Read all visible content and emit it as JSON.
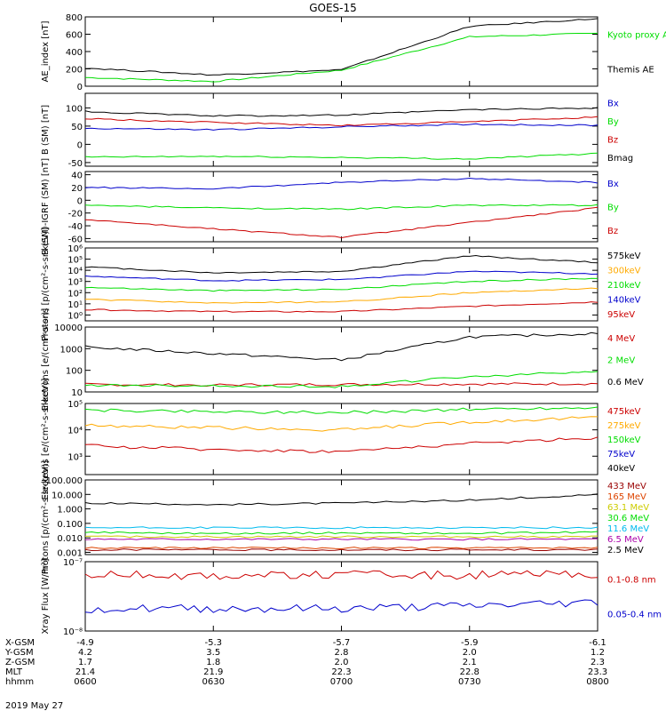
{
  "title": "GOES-15",
  "date_label": "2019 May 27",
  "x_axis": {
    "time_ticks": [
      "0600",
      "0630",
      "0700",
      "0730",
      "0800"
    ],
    "footer_rows": [
      {
        "label": "X-GSM",
        "values": [
          "-4.9",
          "-5.3",
          "-5.7",
          "-5.9",
          "-6.1"
        ]
      },
      {
        "label": "Y-GSM",
        "values": [
          "4.2",
          "3.5",
          "2.8",
          "2.0",
          "1.2"
        ]
      },
      {
        "label": "Z-GSM",
        "values": [
          "1.7",
          "1.8",
          "2.0",
          "2.1",
          "2.3"
        ]
      },
      {
        "label": "MLT",
        "values": [
          "21.4",
          "21.9",
          "22.3",
          "22.8",
          "23.3"
        ]
      },
      {
        "label": "hhmm",
        "values": [
          "0600",
          "0630",
          "0700",
          "0730",
          "0800"
        ]
      }
    ]
  },
  "colors": {
    "black": "#000000",
    "green": "#00dd00",
    "blue": "#0000cc",
    "red": "#cc0000",
    "orange": "#ffaa00",
    "cyan": "#00bbee",
    "darkred": "#990000",
    "redorange": "#dd4400",
    "yellow": "#cccc00",
    "purple": "#aa00aa"
  },
  "chart_data": [
    {
      "type": "line",
      "ylabel": "AE_index [nT]",
      "yscale": "linear",
      "ylim": [
        0,
        800
      ],
      "yticks": [
        "0",
        "200",
        "400",
        "600",
        "800"
      ],
      "x": [
        "0600",
        "0630",
        "0700",
        "0730",
        "0800"
      ],
      "series": [
        {
          "name": "Kyoto proxy AE",
          "color": "#00dd00",
          "values": [
            100,
            55,
            185,
            570,
            610
          ]
        },
        {
          "name": "Themis AE",
          "color": "#000000",
          "values": [
            210,
            130,
            190,
            690,
            780
          ]
        }
      ]
    },
    {
      "type": "line",
      "ylabel": "B (SM) [nT]",
      "yscale": "linear",
      "ylim": [
        -60,
        140
      ],
      "yticks": [
        "-50",
        "0",
        "50",
        "100"
      ],
      "x": [
        "0600",
        "0630",
        "0700",
        "0730",
        "0800"
      ],
      "series": [
        {
          "name": "Bx",
          "color": "#0000cc",
          "values": [
            44,
            40,
            48,
            55,
            52
          ]
        },
        {
          "name": "By",
          "color": "#00dd00",
          "values": [
            -35,
            -33,
            -36,
            -40,
            -25
          ]
        },
        {
          "name": "Bz",
          "color": "#cc0000",
          "values": [
            70,
            60,
            52,
            62,
            75
          ]
        },
        {
          "name": "Bmag",
          "color": "#000000",
          "values": [
            90,
            78,
            80,
            95,
            100
          ]
        }
      ]
    },
    {
      "type": "line",
      "ylabel": "B (SM)-IGRF (SM) [nT]",
      "yscale": "linear",
      "ylim": [
        -65,
        45
      ],
      "yticks": [
        "-60",
        "-40",
        "-20",
        "0",
        "20",
        "40"
      ],
      "x": [
        "0600",
        "0630",
        "0700",
        "0730",
        "0800"
      ],
      "series": [
        {
          "name": "Bx",
          "color": "#0000cc",
          "values": [
            20,
            18,
            28,
            34,
            28
          ]
        },
        {
          "name": "By",
          "color": "#00dd00",
          "values": [
            -8,
            -12,
            -14,
            -8,
            -8
          ]
        },
        {
          "name": "Bz",
          "color": "#cc0000",
          "values": [
            -30,
            -45,
            -58,
            -35,
            -12
          ]
        }
      ]
    },
    {
      "type": "line",
      "ylabel": "Protons [p/(cm²-s-sr-keV)]",
      "yscale": "log",
      "ylim": [
        0.3,
        1000000
      ],
      "yticks": [
        "10⁰",
        "10¹",
        "10²",
        "10³",
        "10⁴",
        "10⁵",
        "10⁶"
      ],
      "x": [
        "0600",
        "0630",
        "0700",
        "0730",
        "0800"
      ],
      "series": [
        {
          "name": "575keV",
          "color": "#000000",
          "values": [
            20000,
            6000,
            8000,
            200000,
            50000
          ]
        },
        {
          "name": "300keV",
          "color": "#ffaa00",
          "values": [
            25,
            12,
            15,
            100,
            250
          ]
        },
        {
          "name": "210keV",
          "color": "#00dd00",
          "values": [
            300,
            150,
            200,
            1000,
            2000
          ]
        },
        {
          "name": "140keV",
          "color": "#0000cc",
          "values": [
            3000,
            1200,
            1500,
            8000,
            5000
          ]
        },
        {
          "name": "95keV",
          "color": "#cc0000",
          "values": [
            3,
            2,
            2,
            6,
            15
          ]
        }
      ]
    },
    {
      "type": "line",
      "ylabel": "Electrons [e/(cm²-s-sr)]",
      "yscale": "log",
      "ylim": [
        10,
        10000
      ],
      "yticks": [
        "10",
        "100",
        "1000",
        "10000"
      ],
      "x": [
        "0600",
        "0630",
        "0700",
        "0730",
        "0800"
      ],
      "series": [
        {
          "name": "4 MeV",
          "color": "#cc0000",
          "values": [
            22,
            21,
            22,
            23,
            24
          ]
        },
        {
          "name": "2 MeV",
          "color": "#00dd00",
          "values": [
            20,
            19,
            18,
            50,
            90
          ]
        },
        {
          "name": "0.6 MeV",
          "color": "#000000",
          "values": [
            1200,
            600,
            300,
            3500,
            5000
          ]
        }
      ]
    },
    {
      "type": "line",
      "ylabel": "Electrons [e/(cm²-s-sr-keV)]",
      "yscale": "log",
      "ylim": [
        200,
        100000
      ],
      "yticks": [
        "10³",
        "10⁴",
        "10⁵"
      ],
      "x": [
        "0600",
        "0630",
        "0700",
        "0730",
        "0800"
      ],
      "series": [
        {
          "name": "475keV",
          "color": "#cc0000",
          "values": [
            2500,
            1800,
            1500,
            3000,
            5000
          ]
        },
        {
          "name": "275keV",
          "color": "#ffaa00",
          "values": [
            15000,
            12000,
            10000,
            20000,
            30000
          ]
        },
        {
          "name": "150keV",
          "color": "#00dd00",
          "values": [
            55000,
            50000,
            45000,
            60000,
            70000
          ]
        },
        {
          "name": "75keV",
          "color": "#0000cc",
          "values": [
            null,
            null,
            null,
            null,
            null
          ]
        },
        {
          "name": "40keV",
          "color": "#000000",
          "values": [
            null,
            null,
            null,
            null,
            null
          ]
        }
      ]
    },
    {
      "type": "line",
      "ylabel": "Protons [p/(cm²-s-sr-keV)]",
      "yscale": "log",
      "ylim": [
        0.0007,
        100
      ],
      "yticks": [
        "0.001",
        "0.010",
        "0.100",
        "1.000",
        "10.000",
        "100.000"
      ],
      "x": [
        "0600",
        "0630",
        "0700",
        "0730",
        "0800"
      ],
      "series": [
        {
          "name": "433 MeV",
          "color": "#990000",
          "values": [
            0.0015,
            0.0015,
            0.0015,
            0.0015,
            0.0015
          ]
        },
        {
          "name": "165 MeV",
          "color": "#dd4400",
          "values": [
            0.002,
            0.002,
            0.002,
            0.002,
            0.002
          ]
        },
        {
          "name": "63.1 MeV",
          "color": "#cccc00",
          "values": [
            0.012,
            0.012,
            0.012,
            0.012,
            0.012
          ]
        },
        {
          "name": "30.6 MeV",
          "color": "#00dd00",
          "values": [
            0.025,
            0.02,
            0.022,
            0.02,
            0.025
          ]
        },
        {
          "name": "11.6 MeV",
          "color": "#00bbee",
          "values": [
            0.05,
            0.05,
            0.05,
            0.05,
            0.05
          ]
        },
        {
          "name": "6.5 MeV",
          "color": "#aa00aa",
          "values": [
            0.008,
            0.008,
            0.008,
            0.008,
            0.008
          ]
        },
        {
          "name": "2.5 MeV",
          "color": "#000000",
          "values": [
            2.5,
            2.0,
            2.5,
            4.0,
            10.0
          ]
        }
      ]
    },
    {
      "type": "line",
      "ylabel": "Xray Flux [W/m²]",
      "yscale": "log",
      "ylim": [
        1e-08,
        1e-07
      ],
      "yticks": [
        "10⁻⁸",
        "10⁻⁷"
      ],
      "x": [
        "0600",
        "0630",
        "0700",
        "0730",
        "0800"
      ],
      "series": [
        {
          "name": "0.1-0.8 nm",
          "color": "#cc0000",
          "values": [
            6.5e-08,
            6.3e-08,
            6.5e-08,
            6.4e-08,
            6.5e-08
          ]
        },
        {
          "name": "0.05-0.4 nm",
          "color": "#0000cc",
          "values": [
            2.1e-08,
            2.1e-08,
            2.1e-08,
            2.3e-08,
            2.6e-08
          ]
        }
      ]
    }
  ]
}
